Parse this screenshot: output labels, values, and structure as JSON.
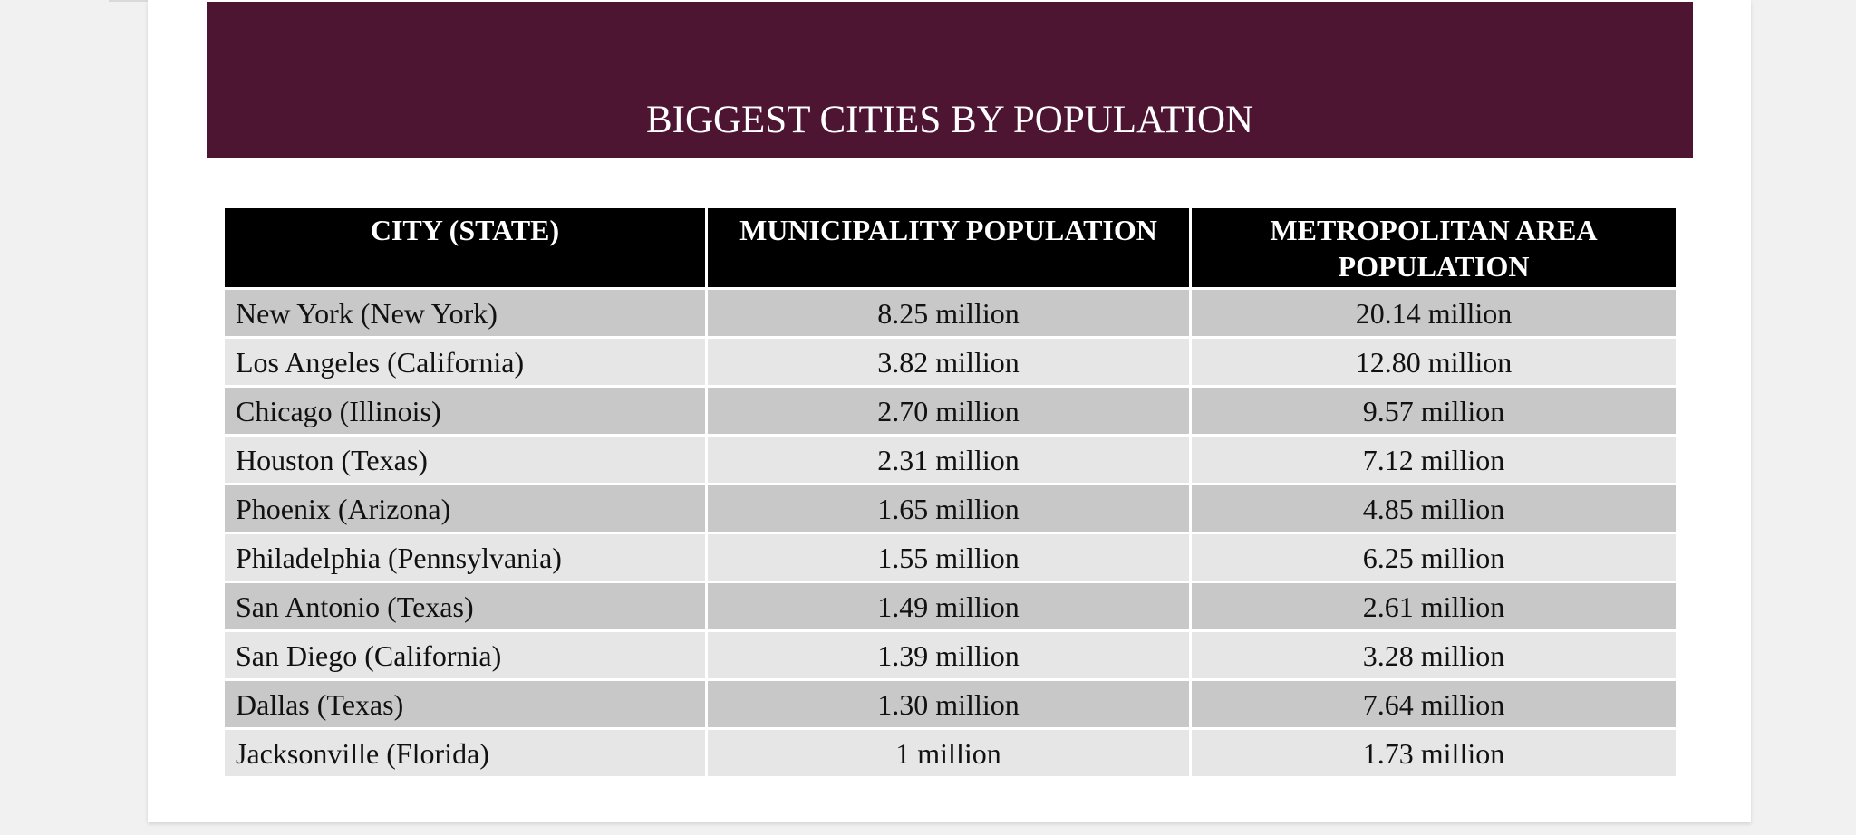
{
  "banner": {
    "title": "BIGGEST CITIES BY POPULATION"
  },
  "table": {
    "headers": [
      "CITY (STATE)",
      "MUNICIPALITY POPULATION",
      "METROPOLITAN AREA POPULATION"
    ],
    "rows": [
      [
        "New York (New York)",
        "8.25 million",
        "20.14 million"
      ],
      [
        "Los Angeles (California)",
        "3.82 million",
        "12.80 million"
      ],
      [
        "Chicago (Illinois)",
        "2.70 million",
        "9.57 million"
      ],
      [
        "Houston (Texas)",
        "2.31 million",
        "7.12 million"
      ],
      [
        "Phoenix (Arizona)",
        "1.65 million",
        "4.85 million"
      ],
      [
        "Philadelphia (Pennsylvania)",
        "1.55 million",
        "6.25 million"
      ],
      [
        "San Antonio (Texas)",
        "1.49 million",
        "2.61 million"
      ],
      [
        "San Diego (California)",
        "1.39 million",
        "3.28 million"
      ],
      [
        "Dallas (Texas)",
        "1.30 million",
        "7.64 million"
      ],
      [
        "Jacksonville (Florida)",
        "1 million",
        "1.73 million"
      ]
    ]
  },
  "colors": {
    "banner": "#4e1533",
    "header_bg": "#000000",
    "row_dark": "#c8c8c8",
    "row_light": "#e6e6e6"
  }
}
